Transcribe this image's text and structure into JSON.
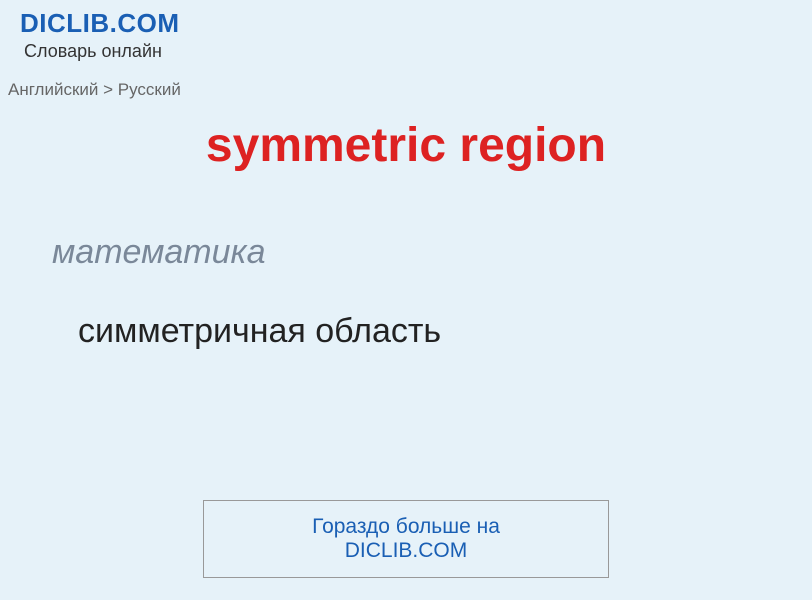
{
  "header": {
    "site_title": "DICLIB.COM",
    "subtitle": "Словарь онлайн"
  },
  "breadcrumb": {
    "text": "Английский > Русский"
  },
  "entry": {
    "title": "symmetric region",
    "category": "математика",
    "translation": "симметричная область"
  },
  "footer": {
    "link_text": "Гораздо больше на DICLIB.COM"
  },
  "colors": {
    "background": "#e6f2f9",
    "site_title": "#1a5fb4",
    "subtitle": "#333333",
    "breadcrumb": "#666666",
    "main_title": "#dd2222",
    "category": "#7a8899",
    "translation": "#222222",
    "footer_link": "#1a5fb4",
    "footer_border": "#999999"
  }
}
